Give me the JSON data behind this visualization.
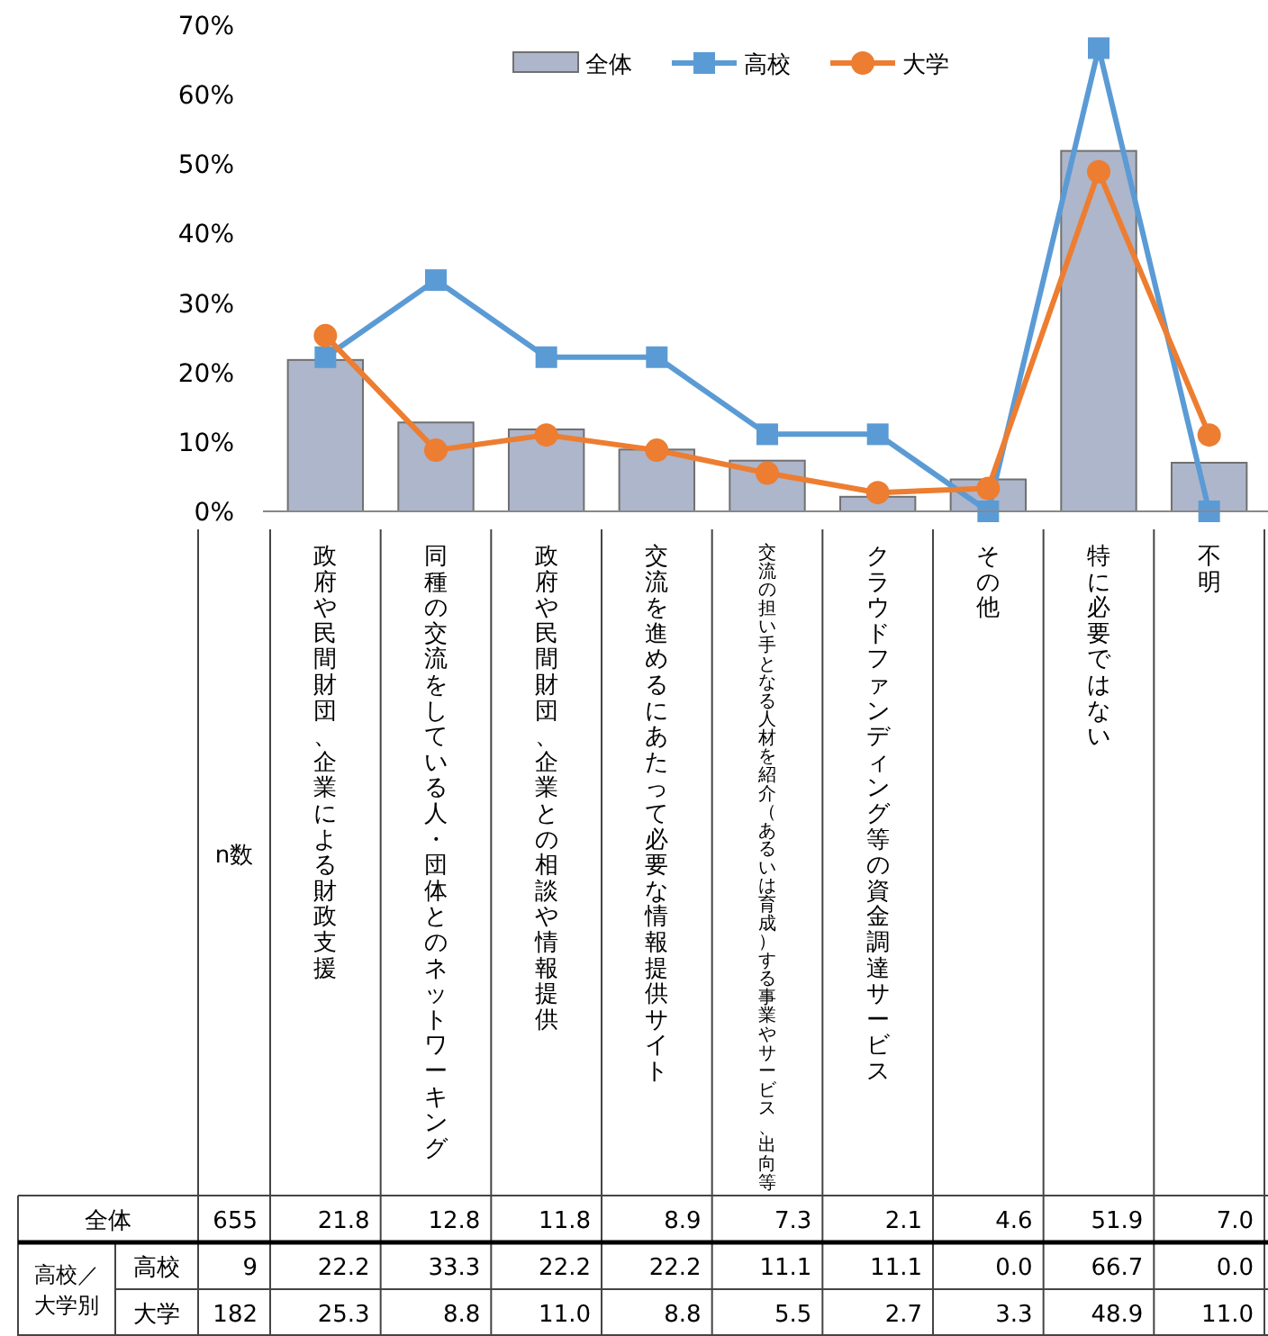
{
  "chart_data": {
    "type": "bar",
    "categories": [
      "政府や民間財団、企業による財政支援",
      "同種の交流をしている人・団体とのネットワーキング",
      "政府や民間財団、企業との相談や情報提供",
      "交流を進めるにあたって必要な情報提供サイト",
      "交流の担い手となる人材を紹介（あるいは育成）する事業やサービス、出向等",
      "クラウドファンディング等の資金調達サービス",
      "その他",
      "特に必要ではない",
      "不明"
    ],
    "series": [
      {
        "name": "全体",
        "type": "bar",
        "color": "#adb6cb",
        "values": [
          21.8,
          12.8,
          11.8,
          8.9,
          7.3,
          2.1,
          4.6,
          51.9,
          7.0
        ],
        "value_labels": [
          "21.8",
          "12.8",
          "11.8",
          "8.9",
          "7.3",
          "2.1",
          "4.6",
          "51.9",
          "7.0"
        ]
      },
      {
        "name": "高校",
        "type": "line",
        "marker": "square",
        "color": "#5b9bd5",
        "values": [
          22.2,
          33.3,
          22.2,
          22.2,
          11.1,
          11.1,
          0.0,
          66.7,
          0.0
        ],
        "value_labels": [
          "22.2",
          "33.3",
          "22.2",
          "22.2",
          "11.1",
          "11.1",
          "0.0",
          "66.7",
          "0.0"
        ]
      },
      {
        "name": "大学",
        "type": "line",
        "marker": "circle",
        "color": "#ed7d31",
        "values": [
          25.3,
          8.8,
          11.0,
          8.8,
          5.5,
          2.7,
          3.3,
          48.9,
          11.0
        ],
        "value_labels": [
          "25.3",
          "8.8",
          "11.0",
          "8.8",
          "5.5",
          "2.7",
          "3.3",
          "48.9",
          "11.0"
        ]
      }
    ],
    "ylim": [
      0,
      70
    ],
    "yticks": [
      {
        "value": 0,
        "label": "0%"
      },
      {
        "value": 10,
        "label": "10%"
      },
      {
        "value": 20,
        "label": "20%"
      },
      {
        "value": 30,
        "label": "30%"
      },
      {
        "value": 40,
        "label": "40%"
      },
      {
        "value": 50,
        "label": "50%"
      },
      {
        "value": 60,
        "label": "60%"
      },
      {
        "value": 70,
        "label": "70%"
      }
    ],
    "grid": false,
    "legend": "top right",
    "annotations": [
      "n数",
      "高校／大学別",
      "655",
      "9",
      "182"
    ]
  }
}
